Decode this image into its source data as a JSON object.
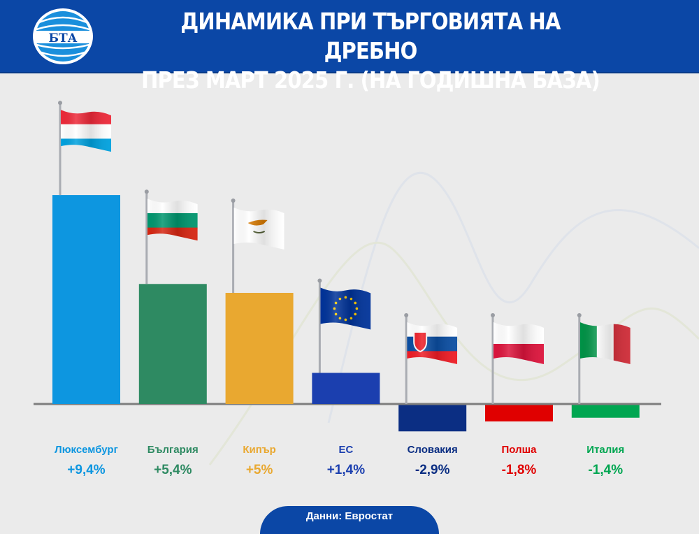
{
  "header": {
    "title_line1": "ДИНАМИКА ПРИ ТЪРГОВИЯТА НА ДРЕБНО",
    "title_line2": "ПРЕЗ МАРТ 2025 Г. (НА ГОДИШНА БАЗА)",
    "logo_text": "БТА"
  },
  "footer": {
    "source": "Данни: Евростат"
  },
  "chart_data": {
    "type": "bar",
    "title": "ДИНАМИКА ПРИ ТЪРГОВИЯТА НА ДРЕБНО ПРЕЗ МАРТ 2025 Г. (НА ГОДИШНА БАЗА)",
    "unit": "%",
    "categories": [
      "Люксембург",
      "България",
      "Кипър",
      "ЕС",
      "Словакия",
      "Полша",
      "Италия"
    ],
    "values": [
      9.4,
      5.4,
      5,
      1.4,
      -2.9,
      -1.8,
      -1.4
    ],
    "value_labels": [
      "+9,4%",
      "+5,4%",
      "+5%",
      "+1,4%",
      "-2,9%",
      "-1,8%",
      "-1,4%"
    ],
    "colors": [
      "#0d96e0",
      "#2e8a62",
      "#e9a830",
      "#1b3faf",
      "#0b2e83",
      "#e00000",
      "#00a651"
    ],
    "flags": [
      "luxembourg-flag",
      "bulgaria-flag",
      "cyprus-flag",
      "eu-flag",
      "slovakia-flag",
      "poland-flag",
      "italy-flag"
    ],
    "grid": false,
    "legend": "none"
  }
}
